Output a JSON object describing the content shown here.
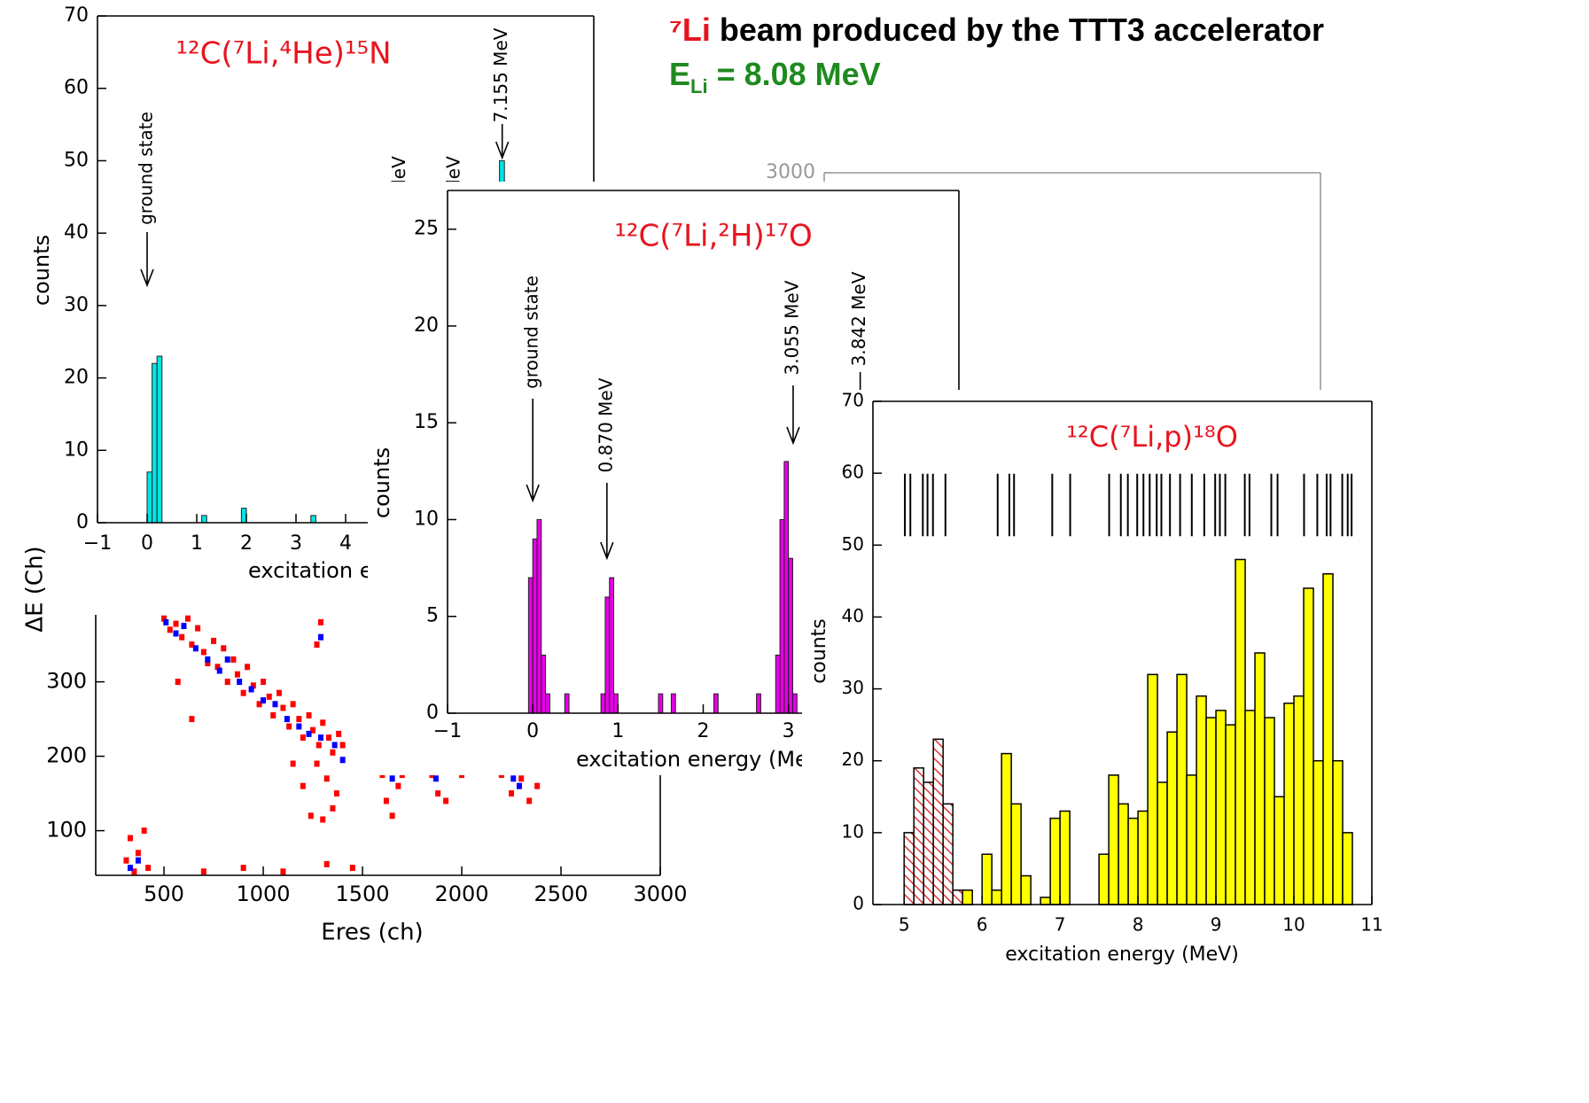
{
  "header": {
    "beam_isotope": "⁷Li",
    "beam_text": "beam produced by the TTT3 accelerator",
    "energy_symbol": "E",
    "energy_subscript": "Li",
    "energy_value": "= 8.08 MeV"
  },
  "chart_data": [
    {
      "type": "scatter",
      "frame_color": "#999999",
      "ylim": [
        0,
        3000
      ],
      "yticks": [
        3000
      ]
    },
    {
      "type": "bar",
      "title": "¹²C(⁷Li,⁴He)¹⁵N",
      "x_label": "excitation energy (MeV)",
      "y_label": "counts",
      "x": [
        0.05,
        0.15,
        0.25,
        1.15,
        1.95,
        3.35,
        7.15
      ],
      "values": [
        7,
        22,
        23,
        1,
        2,
        1,
        50
      ],
      "color": "#00e5e5",
      "xlim": [
        -1,
        9
      ],
      "ylim": [
        0,
        70
      ],
      "xticks": [
        {
          "value": -1,
          "label": "−1"
        },
        0,
        1,
        2,
        3,
        4
      ],
      "yticks": [
        0,
        10,
        20,
        30,
        40,
        50,
        60,
        70
      ],
      "annotations": [
        {
          "text": "ground state",
          "x": 0
        },
        {
          "text": "7.155 MeV",
          "x": 7.155
        },
        {
          "text": "leV",
          "x": 5.1
        },
        {
          "text": "leV",
          "x": 6.2
        }
      ]
    },
    {
      "type": "scatter",
      "x_label": "Eres (ch)",
      "y_label": "ΔE (Ch)",
      "series": [
        {
          "color": "#ff0000",
          "x": [
            500,
            530,
            560,
            590,
            620,
            640,
            670,
            700,
            720,
            750,
            770,
            800,
            820,
            850,
            870,
            900,
            920,
            950,
            980,
            1000,
            1030,
            1050,
            1080,
            1100,
            1130,
            1150,
            1180,
            1200,
            1230,
            1250,
            1280,
            1300,
            1330,
            1350,
            1380,
            1400,
            1270,
            1320,
            1350,
            1370,
            1200,
            1150,
            1240,
            1300,
            1600,
            1620,
            1650,
            1680,
            1700,
            1850,
            1880,
            1920,
            2000,
            2200,
            2250,
            2300,
            2340,
            2380,
            310,
            330,
            350,
            370,
            400,
            420,
            700,
            900,
            1100,
            1320,
            1450,
            1270,
            1290,
            570,
            640
          ],
          "values": [
            385,
            370,
            378,
            360,
            385,
            350,
            372,
            340,
            325,
            355,
            320,
            345,
            300,
            330,
            310,
            285,
            320,
            295,
            270,
            300,
            280,
            255,
            285,
            265,
            240,
            270,
            250,
            225,
            255,
            235,
            215,
            245,
            225,
            205,
            230,
            215,
            190,
            170,
            130,
            150,
            160,
            190,
            120,
            115,
            175,
            140,
            120,
            160,
            175,
            175,
            150,
            140,
            175,
            175,
            150,
            170,
            140,
            160,
            60,
            90,
            45,
            70,
            100,
            50,
            45,
            50,
            45,
            55,
            50,
            350,
            380,
            300,
            250
          ]
        },
        {
          "color": "#0000ff",
          "x": [
            510,
            560,
            600,
            660,
            720,
            780,
            820,
            880,
            940,
            1000,
            1060,
            1120,
            1180,
            1230,
            1290,
            1360,
            1400,
            1290,
            1870,
            2260,
            2290,
            1650,
            330,
            370
          ],
          "values": [
            380,
            365,
            375,
            345,
            330,
            315,
            330,
            300,
            290,
            275,
            270,
            250,
            240,
            230,
            225,
            215,
            195,
            360,
            170,
            170,
            160,
            170,
            50,
            60
          ]
        }
      ],
      "xlim": [
        156,
        3000
      ],
      "ylim": [
        40,
        390
      ],
      "xticks": [
        500,
        1000,
        1500,
        2000,
        2500,
        3000
      ],
      "yticks": [
        100,
        200,
        300
      ]
    },
    {
      "type": "bar",
      "title": "¹²C(⁷Li,²H)¹⁷O",
      "x_label": "excitation energy (MeV)",
      "y_label": "counts",
      "x": [
        -0.025,
        0.025,
        0.075,
        0.125,
        0.175,
        0.4,
        0.825,
        0.875,
        0.925,
        0.975,
        1.5,
        1.65,
        2.15,
        2.65,
        2.875,
        2.925,
        2.975,
        3.025,
        3.075
      ],
      "values": [
        7,
        9,
        10,
        3,
        1,
        1,
        1,
        6,
        7,
        1,
        1,
        1,
        1,
        1,
        3,
        10,
        13,
        8,
        1
      ],
      "color": "#e600e6",
      "xlim": [
        -1,
        5
      ],
      "ylim": [
        0,
        27
      ],
      "xticks": [
        {
          "value": -1,
          "label": "−1"
        },
        0,
        1,
        2,
        3
      ],
      "yticks": [
        0,
        5,
        10,
        15,
        20,
        25
      ],
      "annotations": [
        {
          "text": "ground state",
          "x": 0
        },
        {
          "text": "0.870 MeV",
          "x": 0.87
        },
        {
          "text": "3.055 MeV",
          "x": 3.055
        },
        {
          "text": "3.842 MeV",
          "x": 3.842
        }
      ]
    },
    {
      "type": "histogram",
      "title": "¹²C(⁷Li,p)¹⁸O",
      "x_label": "excitation energy (MeV)",
      "y_label": "counts",
      "series": [
        {
          "color": "#e03030",
          "fill": "hatch",
          "bins": [
            5,
            5.125,
            5.25,
            5.375,
            5.5,
            5.625,
            5.75
          ],
          "values": [
            10,
            19,
            17,
            23,
            14,
            2
          ]
        },
        {
          "color": "#ffff00",
          "fill": "solid",
          "bins": [
            5.75,
            5.875,
            6,
            6.125,
            6.25,
            6.375,
            6.5,
            6.625,
            6.75,
            6.875,
            7,
            7.125,
            7.25,
            7.375,
            7.5,
            7.625,
            7.75,
            7.875,
            8,
            8.125,
            8.25,
            8.375,
            8.5,
            8.625,
            8.75,
            8.875,
            9,
            9.125,
            9.25,
            9.375,
            9.5,
            9.625,
            9.75,
            9.875,
            10,
            10.125,
            10.25,
            10.375,
            10.5,
            10.625,
            10.75
          ],
          "values": [
            2,
            0,
            7,
            2,
            21,
            14,
            4,
            0,
            1,
            12,
            13,
            0,
            0,
            0,
            7,
            18,
            14,
            12,
            13,
            32,
            17,
            24,
            32,
            18,
            29,
            26,
            27,
            25,
            48,
            27,
            35,
            26,
            15,
            28,
            29,
            44,
            20,
            46,
            20,
            10
          ]
        }
      ],
      "levels": [
        5.01,
        5.08,
        5.24,
        5.3,
        5.37,
        5.53,
        6.2,
        6.35,
        6.41,
        6.9,
        7.13,
        7.63,
        7.78,
        7.87,
        7.99,
        8.07,
        8.15,
        8.24,
        8.3,
        8.41,
        8.54,
        8.69,
        8.85,
        8.99,
        9.05,
        9.12,
        9.37,
        9.43,
        9.71,
        9.79,
        10.13,
        10.3,
        10.42,
        10.47,
        10.62,
        10.69,
        10.74
      ],
      "xlim": [
        4.6,
        11
      ],
      "ylim": [
        0,
        70
      ],
      "xticks": [
        5,
        6,
        7,
        8,
        9,
        10,
        11
      ],
      "yticks": [
        0,
        10,
        20,
        30,
        40,
        50,
        60,
        70
      ]
    }
  ]
}
